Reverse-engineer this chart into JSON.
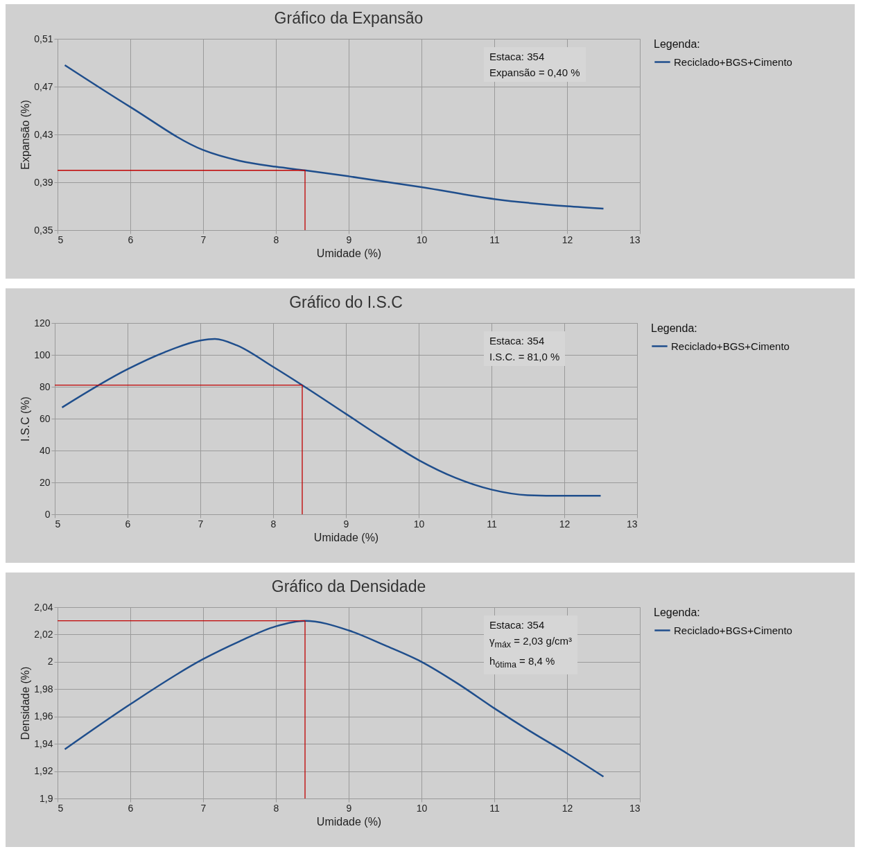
{
  "chart_data": [
    {
      "type": "line",
      "title": "Gráfico da Expansão",
      "xlabel": "Umidade (%)",
      "ylabel": "Expansão (%)",
      "legend_title": "Legenda:",
      "legend": "right",
      "grid": true,
      "line_style": "solid",
      "marker": "none",
      "xlim": [
        5,
        13
      ],
      "xticks": [
        5,
        6,
        7,
        8,
        9,
        10,
        11,
        12,
        13
      ],
      "ylim": [
        0.35,
        0.51
      ],
      "yticks": [
        {
          "value": 0.35,
          "label": "0,35"
        },
        {
          "value": 0.39,
          "label": "0,39"
        },
        {
          "value": 0.43,
          "label": "0,43"
        },
        {
          "value": 0.47,
          "label": "0,47"
        },
        {
          "value": 0.51,
          "label": "0,51"
        }
      ],
      "series": [
        {
          "name": "Reciclado+BGS+Cimento",
          "color": "#1f4e8c",
          "x": [
            5.1,
            6,
            7,
            7.5,
            8,
            8.4,
            9,
            10,
            11,
            12,
            12.5
          ],
          "values": [
            0.488,
            0.453,
            0.417,
            0.408,
            0.403,
            0.4,
            0.395,
            0.386,
            0.376,
            0.37,
            0.368
          ]
        }
      ],
      "ref_lines": [
        {
          "axis": "y",
          "value": 0.4,
          "color": "#c00000"
        },
        {
          "axis": "x",
          "value": 8.4,
          "color": "#c00000"
        }
      ],
      "annotations": [
        "Estaca: 354",
        "Expansão = 0,40 %"
      ]
    },
    {
      "type": "line",
      "title": "Gráfico do I.S.C",
      "xlabel": "Umidade (%)",
      "ylabel": "I.S.C (%)",
      "legend_title": "Legenda:",
      "legend": "right",
      "grid": true,
      "line_style": "solid",
      "marker": "none",
      "xlim": [
        5,
        13
      ],
      "xticks": [
        5,
        6,
        7,
        8,
        9,
        10,
        11,
        12,
        13
      ],
      "ylim": [
        0,
        120
      ],
      "yticks": [
        0,
        20,
        40,
        60,
        80,
        100,
        120
      ],
      "series": [
        {
          "name": "Reciclado+BGS+Cimento",
          "color": "#1f4e8c",
          "x": [
            5.1,
            6,
            6.5,
            7,
            7.2,
            7.5,
            8,
            8.4,
            9,
            9.5,
            10,
            10.5,
            11,
            11.5,
            12,
            12.5
          ],
          "values": [
            67,
            91,
            101.5,
            109,
            110,
            106,
            92.5,
            81,
            63,
            48,
            34,
            23,
            15.5,
            12,
            11.6,
            11.6
          ]
        }
      ],
      "ref_lines": [
        {
          "axis": "y",
          "value": 81,
          "color": "#c00000"
        },
        {
          "axis": "x",
          "value": 8.4,
          "color": "#c00000"
        }
      ],
      "annotations": [
        "Estaca: 354",
        "I.S.C. = 81,0 %"
      ]
    },
    {
      "type": "line",
      "title": "Gráfico da Densidade",
      "xlabel": "Umidade (%)",
      "ylabel": "Densidade (%)",
      "legend_title": "Legenda:",
      "legend": "right",
      "grid": true,
      "line_style": "solid",
      "marker": "none",
      "xlim": [
        5,
        13
      ],
      "xticks": [
        5,
        6,
        7,
        8,
        9,
        10,
        11,
        12,
        13
      ],
      "ylim": [
        1.9,
        2.04
      ],
      "yticks": [
        {
          "value": 1.9,
          "label": "1,9"
        },
        {
          "value": 1.92,
          "label": "1,92"
        },
        {
          "value": 1.94,
          "label": "1,94"
        },
        {
          "value": 1.96,
          "label": "1,96"
        },
        {
          "value": 1.98,
          "label": "1,98"
        },
        2,
        {
          "value": 2.02,
          "label": "2,02"
        },
        {
          "value": 2.04,
          "label": "2,04"
        }
      ],
      "series": [
        {
          "name": "Reciclado+BGS+Cimento",
          "color": "#1f4e8c",
          "x": [
            5.1,
            6,
            7,
            7.5,
            8,
            8.4,
            9,
            9.5,
            10,
            10.5,
            11,
            11.5,
            12,
            12.5
          ],
          "values": [
            1.936,
            1.969,
            2.002,
            2.015,
            2.026,
            2.03,
            2.023,
            2.012,
            2.0,
            1.984,
            1.966,
            1.949,
            1.933,
            1.916
          ]
        }
      ],
      "ref_lines": [
        {
          "axis": "y",
          "value": 2.03,
          "color": "#c00000"
        },
        {
          "axis": "x",
          "value": 8.4,
          "color": "#c00000"
        }
      ],
      "annotations": [
        "Estaca: 354",
        "γ$_{máx}$ = 2,03 g/cm³",
        "h$_{ótima}$ = 8,4 %"
      ]
    }
  ]
}
